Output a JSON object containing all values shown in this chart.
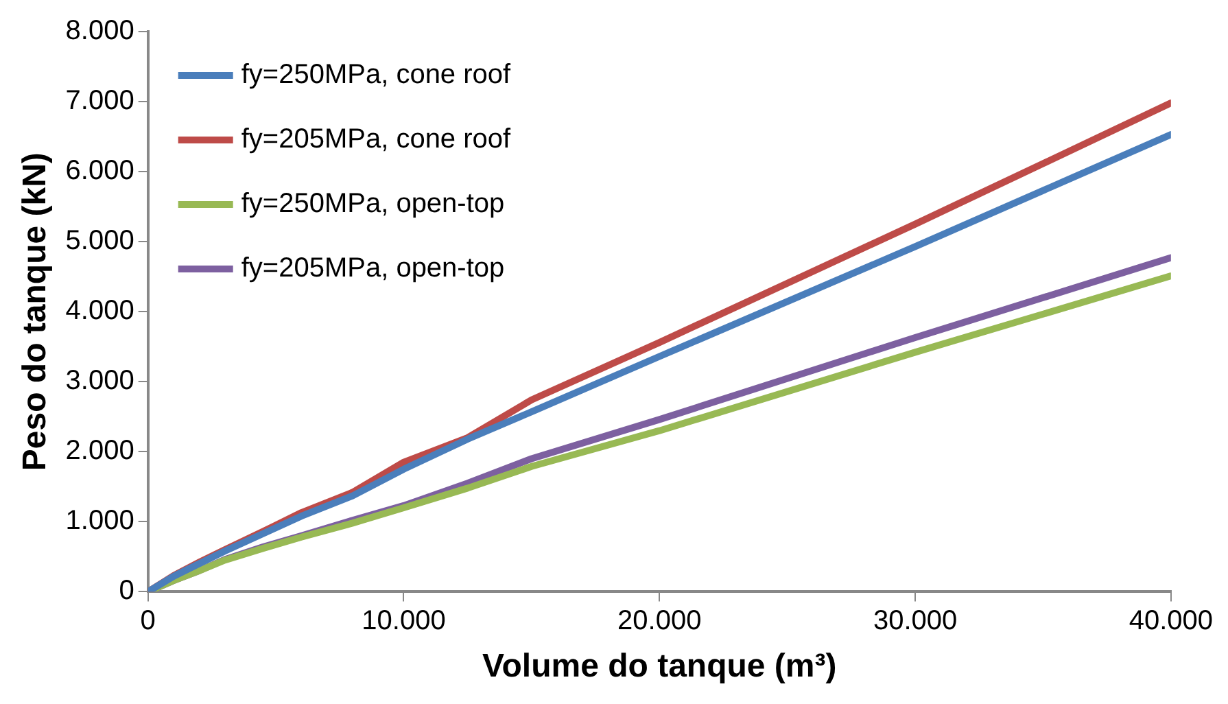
{
  "chart_data": {
    "type": "line",
    "xlabel": "Volume do tanque (m³)",
    "ylabel": "Peso do tanque (kN)",
    "x": [
      0,
      1000,
      2000,
      3000,
      4500,
      6000,
      8000,
      10000,
      12500,
      15000,
      20000,
      30000,
      40000
    ],
    "series": [
      {
        "name": "fy=250MPa, cone roof",
        "color": "#4a7ebb",
        "values": [
          0,
          220,
          400,
          580,
          830,
          1080,
          1370,
          1750,
          2180,
          2570,
          3360,
          4930,
          6530
        ]
      },
      {
        "name": "fy=205MPa, cone roof",
        "color": "#be4b48",
        "values": [
          0,
          230,
          420,
          600,
          860,
          1130,
          1420,
          1850,
          2200,
          2740,
          3560,
          5250,
          6980
        ]
      },
      {
        "name": "fy=250MPa, open-top",
        "color": "#98b954",
        "values": [
          0,
          160,
          300,
          450,
          620,
          780,
          980,
          1200,
          1480,
          1790,
          2300,
          3420,
          4510
        ]
      },
      {
        "name": "fy=205MPa, open-top",
        "color": "#7d60a0",
        "values": [
          0,
          160,
          300,
          460,
          640,
          800,
          1020,
          1230,
          1550,
          1900,
          2460,
          3630,
          4770
        ]
      }
    ],
    "xlim": [
      0,
      40000
    ],
    "xticks": [
      0,
      {
        "value": 10000,
        "label": "10.000"
      },
      {
        "value": 20000,
        "label": "20.000"
      },
      {
        "value": 30000,
        "label": "30.000"
      },
      {
        "value": 40000,
        "label": "40.000"
      }
    ],
    "ylim": [
      0,
      8000
    ],
    "yticks": [
      0,
      {
        "value": 1000,
        "label": "1.000"
      },
      {
        "value": 2000,
        "label": "2.000"
      },
      {
        "value": 3000,
        "label": "3.000"
      },
      {
        "value": 4000,
        "label": "4.000"
      },
      {
        "value": 5000,
        "label": "5.000"
      },
      {
        "value": 6000,
        "label": "6.000"
      },
      {
        "value": 7000,
        "label": "7.000"
      },
      {
        "value": 8000,
        "label": "8.000"
      }
    ],
    "grid": false,
    "legend": "top left",
    "marker": "none",
    "line_style": "solid"
  }
}
